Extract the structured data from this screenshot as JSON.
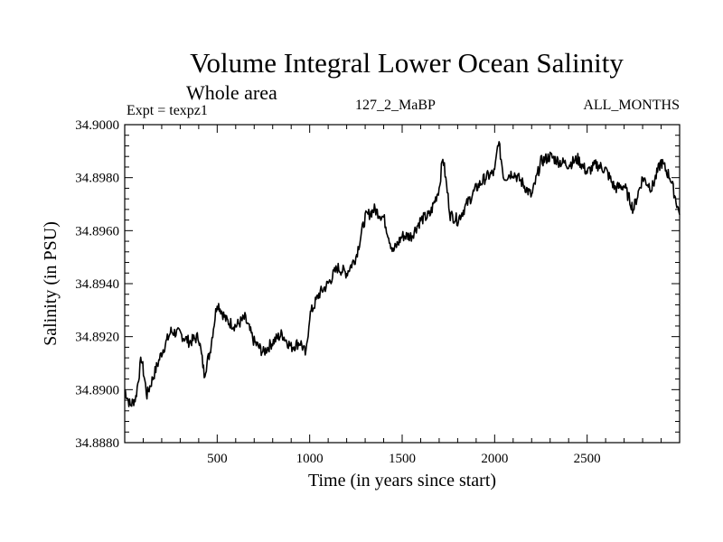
{
  "chart_data": {
    "type": "line",
    "title": "Volume Integral Lower Ocean Salinity",
    "subtitle": "Whole area",
    "left_label": "Expt = texpz1",
    "center_label": "127_2_MaBP",
    "right_label": "ALL_MONTHS",
    "xlabel": "Time (in years since start)",
    "ylabel": "Salinity (in PSU)",
    "xlim": [
      0,
      3000
    ],
    "ylim": [
      34.888,
      34.9
    ],
    "xticks": [
      500,
      1000,
      1500,
      2000,
      2500
    ],
    "yticks": [
      "34.8880",
      "34.8900",
      "34.8920",
      "34.8940",
      "34.8960",
      "34.8980",
      "34.9000"
    ],
    "grid": false,
    "series": [
      {
        "x": [
          0,
          30,
          60,
          90,
          120,
          160,
          200,
          250,
          300,
          350,
          400,
          430,
          460,
          500,
          550,
          600,
          650,
          700,
          750,
          800,
          850,
          900,
          950,
          980,
          1000,
          1050,
          1100,
          1150,
          1200,
          1250,
          1300,
          1350,
          1400,
          1450,
          1500,
          1550,
          1600,
          1650,
          1700,
          1720,
          1760,
          1800,
          1850,
          1900,
          1950,
          2000,
          2020,
          2050,
          2100,
          2150,
          2200,
          2250,
          2300,
          2350,
          2400,
          2450,
          2500,
          2550,
          2600,
          2650,
          2700,
          2750,
          2800,
          2850,
          2900,
          2950,
          3000
        ],
        "y": [
          34.89,
          34.8894,
          34.8897,
          34.8912,
          34.8898,
          34.8906,
          34.8914,
          34.8922,
          34.8921,
          34.8918,
          34.892,
          34.8906,
          34.8914,
          34.8933,
          34.8926,
          34.8924,
          34.8927,
          34.8918,
          34.8914,
          34.8918,
          34.8921,
          34.8916,
          34.8918,
          34.8913,
          34.8928,
          34.8936,
          34.894,
          34.8946,
          34.8944,
          34.895,
          34.8965,
          34.8968,
          34.8965,
          34.8952,
          34.8958,
          34.8958,
          34.8964,
          34.8966,
          34.8976,
          34.8988,
          34.8966,
          34.8964,
          34.897,
          34.8976,
          34.898,
          34.8982,
          34.8994,
          34.898,
          34.8982,
          34.8978,
          34.8973,
          34.8986,
          34.8988,
          34.8986,
          34.8985,
          34.8987,
          34.8982,
          34.8985,
          34.8983,
          34.8976,
          34.8977,
          34.8968,
          34.898,
          34.8976,
          34.8986,
          34.898,
          34.8966
        ]
      }
    ]
  }
}
